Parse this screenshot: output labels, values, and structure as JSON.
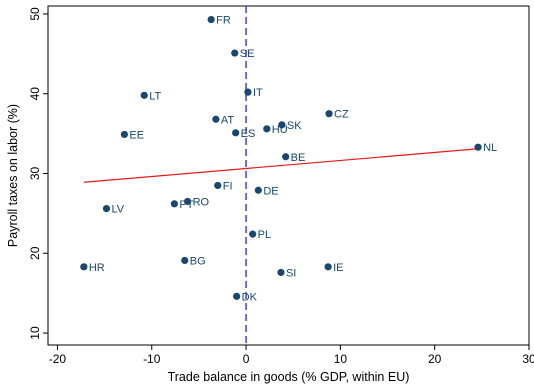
{
  "chart_data": {
    "type": "scatter",
    "xlabel": "Trade balance in goods (% GDP, within EU)",
    "ylabel": "Payroll taxes on labor (%)",
    "xlim": [
      -21,
      30
    ],
    "ylim": [
      8.5,
      51
    ],
    "xticks": [
      -20,
      -10,
      0,
      10,
      20,
      30
    ],
    "yticks": [
      10,
      20,
      30,
      40,
      50
    ],
    "grid": false,
    "legend": "none",
    "point_color": "#1a476f",
    "points": [
      {
        "label": "FR",
        "x": -3.7,
        "y": 49.3
      },
      {
        "label": "SE",
        "x": -1.2,
        "y": 45.1
      },
      {
        "label": "IT",
        "x": 0.2,
        "y": 40.2
      },
      {
        "label": "LT",
        "x": -10.8,
        "y": 39.8
      },
      {
        "label": "CZ",
        "x": 8.8,
        "y": 37.5
      },
      {
        "label": "AT",
        "x": -3.2,
        "y": 36.8
      },
      {
        "label": "SK",
        "x": 3.8,
        "y": 36.1
      },
      {
        "label": "HU",
        "x": 2.2,
        "y": 35.6
      },
      {
        "label": "EE",
        "x": -12.9,
        "y": 34.9
      },
      {
        "label": "ES",
        "x": -1.1,
        "y": 35.1
      },
      {
        "label": "NL",
        "x": 24.6,
        "y": 33.3
      },
      {
        "label": "BE",
        "x": 4.2,
        "y": 32.1
      },
      {
        "label": "FI",
        "x": -3.0,
        "y": 28.5
      },
      {
        "label": "DE",
        "x": 1.3,
        "y": 27.9
      },
      {
        "label": "RO",
        "x": -6.2,
        "y": 26.5
      },
      {
        "label": "PT",
        "x": -7.6,
        "y": 26.2
      },
      {
        "label": "LV",
        "x": -14.8,
        "y": 25.6
      },
      {
        "label": "PL",
        "x": 0.7,
        "y": 22.4
      },
      {
        "label": "BG",
        "x": -6.5,
        "y": 19.1
      },
      {
        "label": "HR",
        "x": -17.2,
        "y": 18.3
      },
      {
        "label": "IE",
        "x": 8.7,
        "y": 18.3
      },
      {
        "label": "SI",
        "x": 3.7,
        "y": 17.6
      },
      {
        "label": "DK",
        "x": -1.0,
        "y": 14.6
      }
    ],
    "fit_line": {
      "x": [
        -17.2,
        24.6
      ],
      "y": [
        28.9,
        33.1
      ],
      "color": "#e41a1c"
    },
    "reference_line": {
      "x": 0,
      "style": "dashed",
      "color": "#3f3fd6"
    }
  }
}
